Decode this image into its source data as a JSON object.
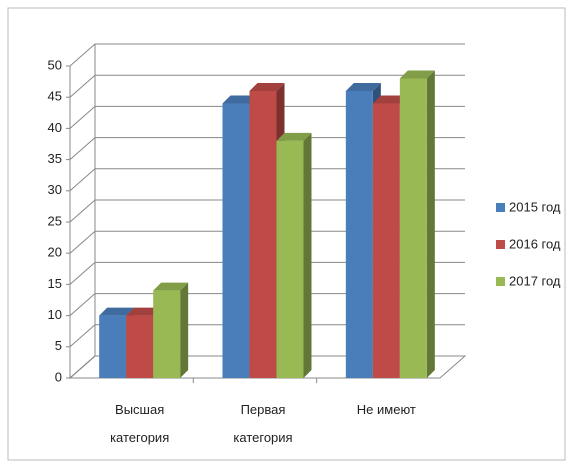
{
  "chart_data": {
    "type": "bar3d",
    "categories": [
      "Высшая категория",
      "Первая категория",
      "Не имеют"
    ],
    "series": [
      {
        "name": "2015 год",
        "color": "#4a7ebb",
        "values": [
          10,
          44,
          46
        ]
      },
      {
        "name": "2016 год",
        "color": "#be4b48",
        "values": [
          10,
          46,
          44
        ]
      },
      {
        "name": "2017 год",
        "color": "#98b954",
        "values": [
          14,
          38,
          48
        ]
      }
    ],
    "ylim": [
      0,
      50
    ],
    "yticks": [
      0,
      5,
      10,
      15,
      20,
      25,
      30,
      35,
      40,
      45,
      50
    ],
    "grid": true,
    "legend": "right"
  }
}
